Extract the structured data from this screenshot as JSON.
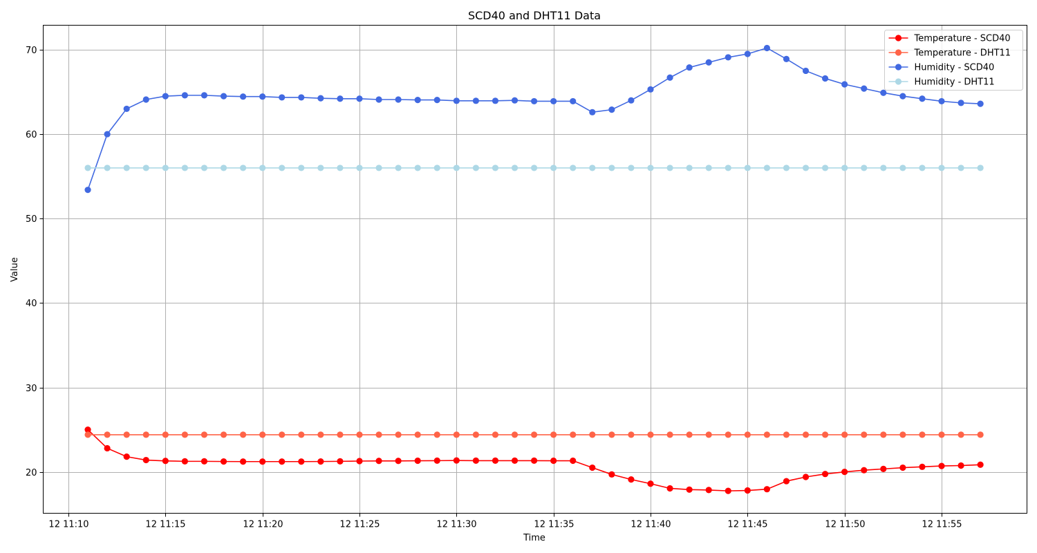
{
  "chart_data": {
    "type": "line",
    "title": "SCD40 and DHT11 Data",
    "xlabel": "Time",
    "ylabel": "Value",
    "x_tick_labels": [
      "12 11:10",
      "12 11:15",
      "12 11:20",
      "12 11:25",
      "12 11:30",
      "12 11:35",
      "12 11:40",
      "12 11:45",
      "12 11:50",
      "12 11:55"
    ],
    "x_tick_minutes": [
      10,
      15,
      20,
      25,
      30,
      35,
      40,
      45,
      50,
      55
    ],
    "y_ticks": [
      20,
      30,
      40,
      50,
      60,
      70
    ],
    "xlim": [
      "12 11:08.7",
      "12 11:59.4"
    ],
    "ylim": [
      15.1,
      72.9
    ],
    "grid": true,
    "legend_position": "top-right",
    "x": [
      "12 11:11",
      "12 11:12",
      "12 11:13",
      "12 11:14",
      "12 11:15",
      "12 11:16",
      "12 11:17",
      "12 11:18",
      "12 11:19",
      "12 11:20",
      "12 11:21",
      "12 11:22",
      "12 11:23",
      "12 11:24",
      "12 11:25",
      "12 11:26",
      "12 11:27",
      "12 11:28",
      "12 11:29",
      "12 11:30",
      "12 11:31",
      "12 11:32",
      "12 11:33",
      "12 11:34",
      "12 11:35",
      "12 11:36",
      "12 11:37",
      "12 11:38",
      "12 11:39",
      "12 11:40",
      "12 11:41",
      "12 11:42",
      "12 11:43",
      "12 11:44",
      "12 11:45",
      "12 11:46",
      "12 11:47",
      "12 11:48",
      "12 11:49",
      "12 11:50",
      "12 11:51",
      "12 11:52",
      "12 11:53",
      "12 11:54",
      "12 11:55",
      "12 11:56",
      "12 11:57"
    ],
    "series": [
      {
        "name": "Temperature - SCD40",
        "color": "#ff0000",
        "values": [
          25.0,
          22.8,
          21.8,
          21.4,
          21.3,
          21.25,
          21.25,
          21.23,
          21.22,
          21.22,
          21.22,
          21.22,
          21.23,
          21.25,
          21.28,
          21.3,
          21.3,
          21.32,
          21.33,
          21.35,
          21.33,
          21.33,
          21.33,
          21.33,
          21.32,
          21.32,
          20.5,
          19.7,
          19.1,
          18.6,
          18.05,
          17.9,
          17.85,
          17.75,
          17.8,
          17.95,
          18.9,
          19.4,
          19.75,
          20.0,
          20.2,
          20.35,
          20.5,
          20.6,
          20.7,
          20.75,
          20.85
        ]
      },
      {
        "name": "Temperature - DHT11",
        "color": "#ff6347",
        "values": [
          24.4,
          24.4,
          24.4,
          24.4,
          24.4,
          24.4,
          24.4,
          24.4,
          24.4,
          24.4,
          24.4,
          24.4,
          24.4,
          24.4,
          24.4,
          24.4,
          24.4,
          24.4,
          24.4,
          24.4,
          24.4,
          24.4,
          24.4,
          24.4,
          24.4,
          24.4,
          24.4,
          24.4,
          24.4,
          24.4,
          24.4,
          24.4,
          24.4,
          24.4,
          24.4,
          24.4,
          24.4,
          24.4,
          24.4,
          24.4,
          24.4,
          24.4,
          24.4,
          24.4,
          24.4,
          24.4,
          24.4
        ]
      },
      {
        "name": "Humidity - SCD40",
        "color": "#4169e1",
        "values": [
          53.4,
          60.0,
          63.0,
          64.1,
          64.5,
          64.6,
          64.6,
          64.5,
          64.45,
          64.45,
          64.35,
          64.35,
          64.25,
          64.2,
          64.2,
          64.1,
          64.1,
          64.05,
          64.05,
          63.95,
          63.95,
          63.95,
          64.0,
          63.9,
          63.9,
          63.9,
          62.6,
          62.9,
          64.0,
          65.3,
          66.7,
          67.9,
          68.5,
          69.1,
          69.5,
          70.2,
          68.9,
          67.5,
          66.6,
          65.9,
          65.4,
          64.9,
          64.5,
          64.2,
          63.9,
          63.7,
          63.6
        ]
      },
      {
        "name": "Humidity - DHT11",
        "color": "#add8e6",
        "values": [
          56.0,
          56.0,
          56.0,
          56.0,
          56.0,
          56.0,
          56.0,
          56.0,
          56.0,
          56.0,
          56.0,
          56.0,
          56.0,
          56.0,
          56.0,
          56.0,
          56.0,
          56.0,
          56.0,
          56.0,
          56.0,
          56.0,
          56.0,
          56.0,
          56.0,
          56.0,
          56.0,
          56.0,
          56.0,
          56.0,
          56.0,
          56.0,
          56.0,
          56.0,
          56.0,
          56.0,
          56.0,
          56.0,
          56.0,
          56.0,
          56.0,
          56.0,
          56.0,
          56.0,
          56.0,
          56.0,
          56.0
        ]
      }
    ]
  }
}
